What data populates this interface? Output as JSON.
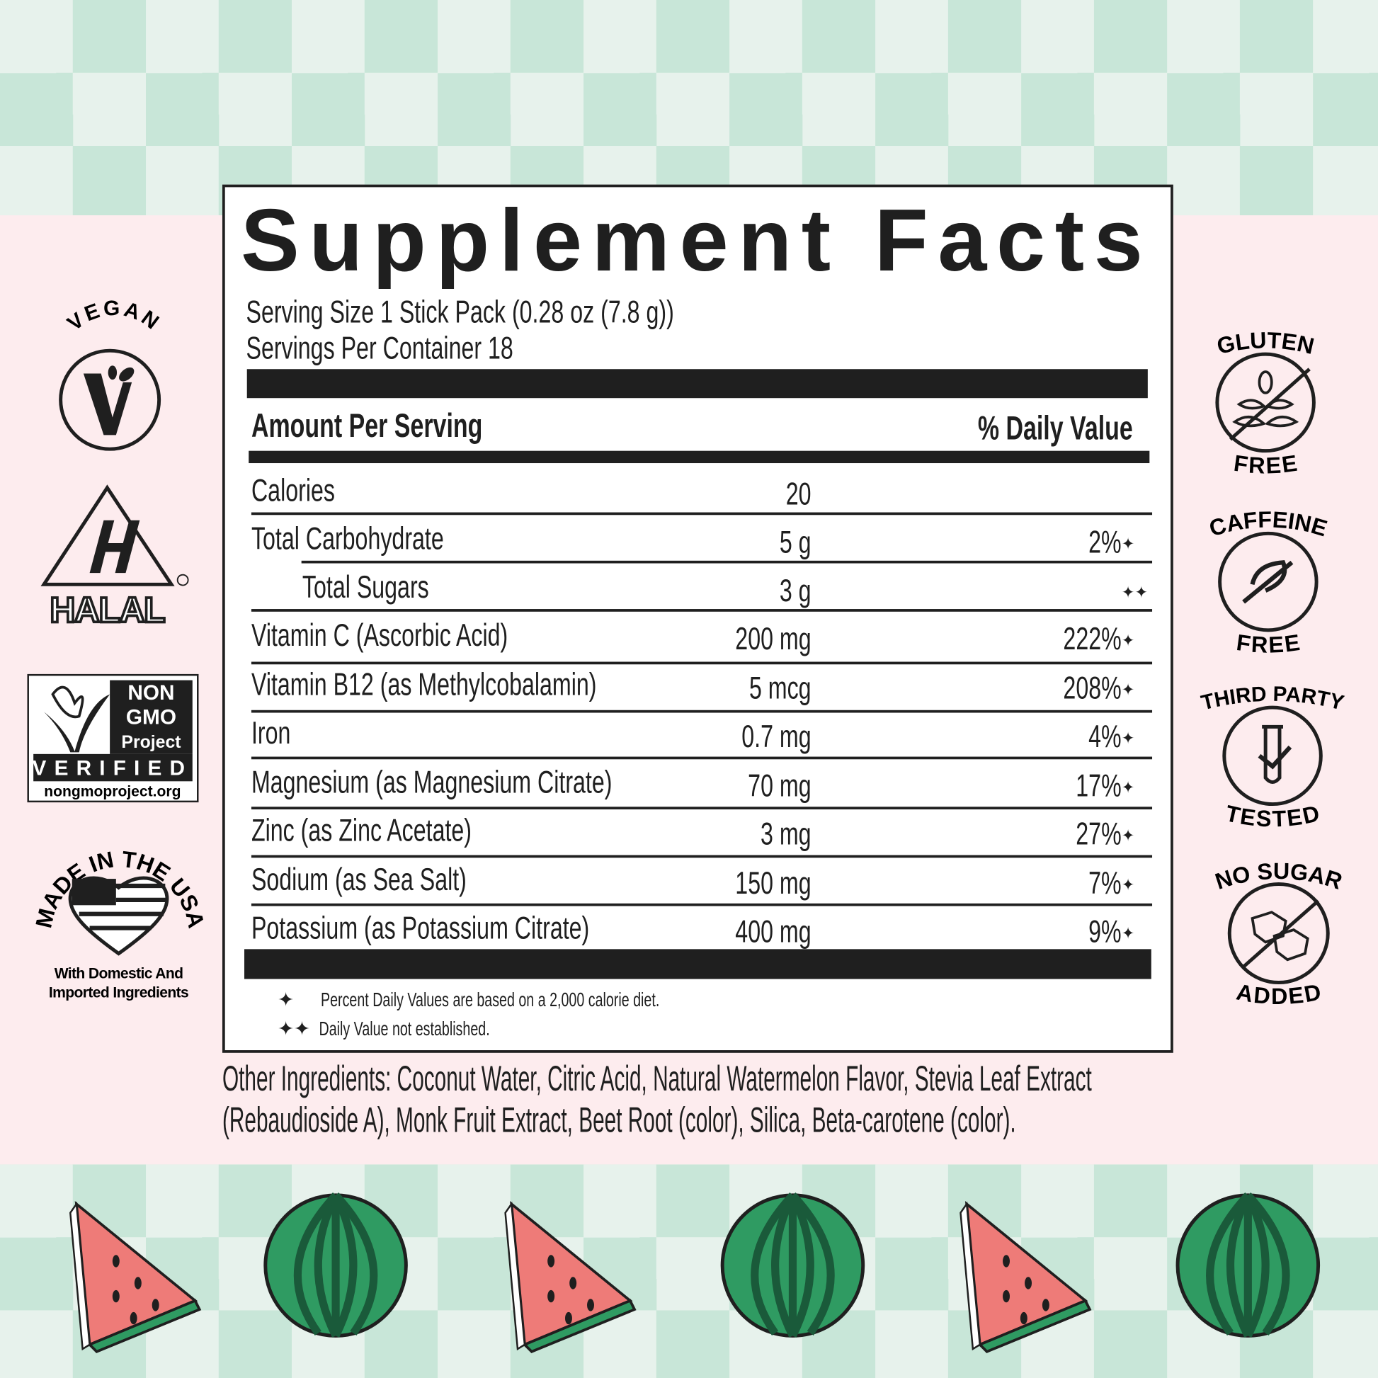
{
  "panel": {
    "title": "Supplement Facts",
    "serving_size": "Serving Size 1 Stick Pack (0.28 oz (7.8 g))",
    "servings_per_container": "Servings Per Container 18",
    "header_amount": "Amount Per Serving",
    "header_dv": "% Daily Value",
    "rows": [
      {
        "label": "Calories",
        "amount": "20",
        "dv": "",
        "marker": ""
      },
      {
        "label": "Total Carbohydrate",
        "amount": "5 g",
        "dv": "2%",
        "marker": "✦"
      },
      {
        "label": "Total Sugars",
        "amount": "3 g",
        "dv": "",
        "marker": "✦✦"
      },
      {
        "label": "Vitamin C (Ascorbic Acid)",
        "amount": "200 mg",
        "dv": "222%",
        "marker": "✦"
      },
      {
        "label": "Vitamin B12 (as Methylcobalamin)",
        "amount": "5 mcg",
        "dv": "208%",
        "marker": "✦"
      },
      {
        "label": "Iron",
        "amount": "0.7 mg",
        "dv": "4%",
        "marker": "✦"
      },
      {
        "label": "Magnesium (as Magnesium Citrate)",
        "amount": "70 mg",
        "dv": "17%",
        "marker": "✦"
      },
      {
        "label": "Zinc (as Zinc Acetate)",
        "amount": "3 mg",
        "dv": "27%",
        "marker": "✦"
      },
      {
        "label": "Sodium (as Sea Salt)",
        "amount": "150 mg",
        "dv": "7%",
        "marker": "✦"
      },
      {
        "label": "Potassium (as Potassium Citrate)",
        "amount": "400 mg",
        "dv": "9%",
        "marker": "✦"
      }
    ],
    "footnotes": [
      {
        "symbol": "✦",
        "text": "Percent Daily Values are based on a 2,000 calorie diet."
      },
      {
        "symbol": "✦✦",
        "text": "Daily Value not established."
      }
    ]
  },
  "other_ingredients": "Other Ingredients: Coconut Water, Citric Acid, Natural Watermelon Flavor, Stevia Leaf Extract (Rebaudioside A), Monk Fruit Extract, Beet Root (color), Silica, Beta-carotene (color).",
  "badges_left": {
    "vegan": "VEGAN",
    "halal": "HALAL",
    "non_gmo": {
      "line1": "NON",
      "line2": "GMO",
      "line3": "Project",
      "verified": "VERIFIED",
      "url": "nongmoproject.org"
    },
    "usa": {
      "arc": "MADE IN THE USA",
      "sub1": "With Domestic And",
      "sub2": "Imported Ingredients"
    }
  },
  "badges_right": {
    "gluten": {
      "top": "GLUTEN",
      "bottom": "FREE"
    },
    "caffeine": {
      "top": "CAFFEINE",
      "bottom": "FREE"
    },
    "third_party": {
      "top": "THIRD PARTY",
      "bottom": "TESTED"
    },
    "no_sugar": {
      "top": "NO SUGAR",
      "bottom": "ADDED"
    }
  },
  "colors": {
    "checker_dark": "#c8e6d8",
    "checker_light": "#e7f2ec",
    "pink": "#fdecee",
    "ink": "#1f1f1f",
    "melon_red": "#ee7b78",
    "melon_green": "#2f9b62"
  }
}
